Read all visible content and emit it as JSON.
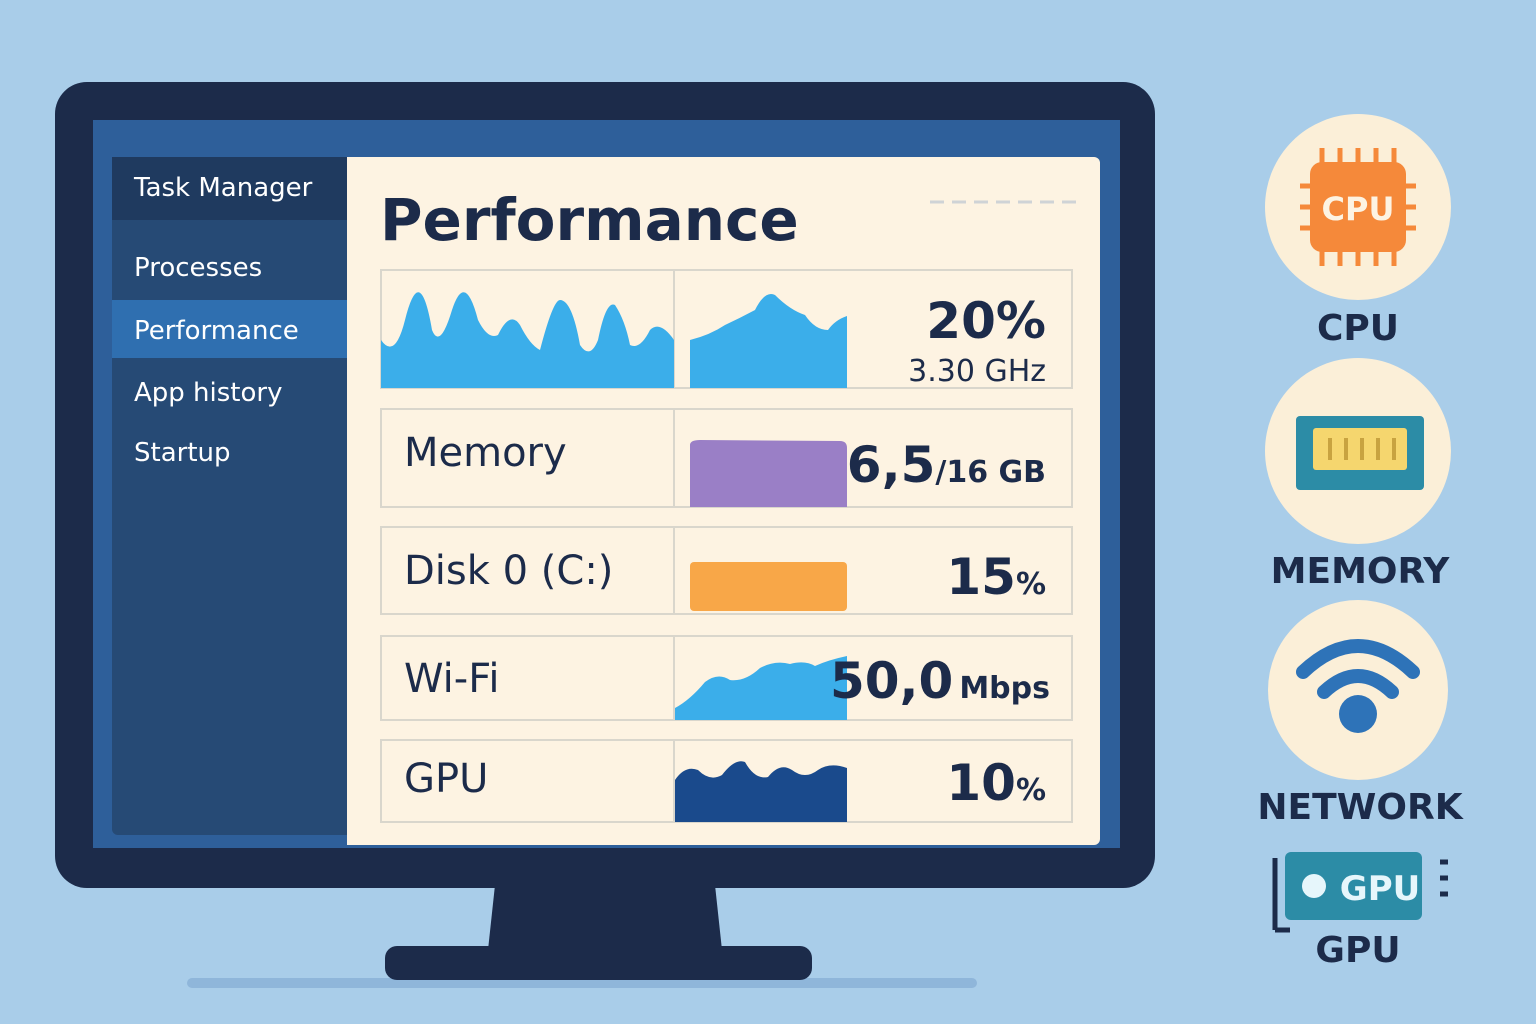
{
  "sidebar": {
    "title": "Task Manager",
    "items": [
      "Processes",
      "Performance",
      "App history",
      "Startup"
    ]
  },
  "main": {
    "title": "Performance",
    "rows": [
      {
        "value": "20",
        "unit": "%",
        "detail": "3.30 GHz"
      },
      {
        "label": "Memory",
        "value": "6,5",
        "unit": "/16 GB"
      },
      {
        "label": "Disk 0 (C:)",
        "value": "15",
        "unit": "%"
      },
      {
        "label": "Wi-Fi",
        "value": "50,0",
        "unit": "Mbps"
      },
      {
        "label": "GPU",
        "value": "10",
        "unit": "%"
      }
    ]
  },
  "legend": {
    "cpu_chip": "CPU",
    "items": [
      "CPU",
      "MEMORY",
      "NETWORK",
      "GPU"
    ],
    "gpu_chip": "GPU"
  }
}
